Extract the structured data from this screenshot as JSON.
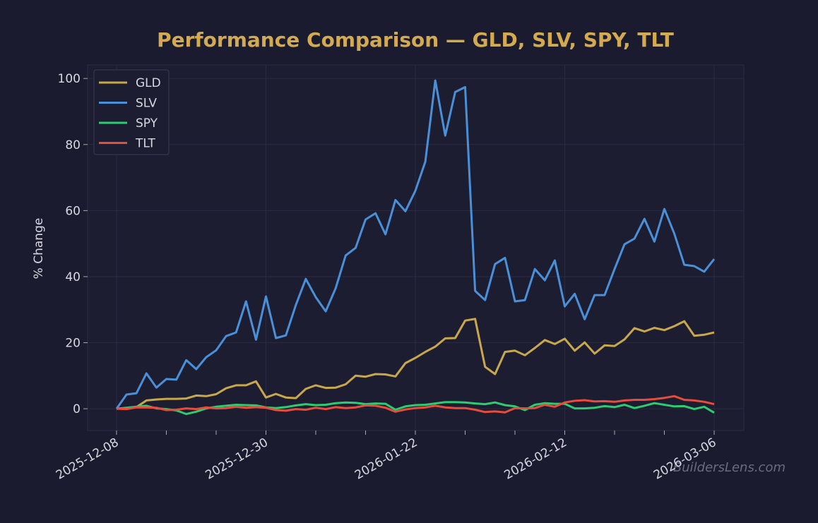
{
  "chart_data": {
    "type": "line",
    "title": "Performance Comparison — GLD, SLV, SPY, TLT",
    "y_label": "% Change",
    "watermark": "BuildersLens.com",
    "categories": [
      "2025-12-08",
      null,
      null,
      null,
      null,
      null,
      null,
      null,
      null,
      null,
      null,
      null,
      null,
      null,
      null,
      "2025-12-30",
      null,
      null,
      null,
      null,
      null,
      null,
      null,
      null,
      null,
      null,
      null,
      null,
      null,
      null,
      "2026-01-22",
      null,
      null,
      null,
      null,
      null,
      null,
      null,
      null,
      null,
      null,
      null,
      null,
      null,
      null,
      "2026-02-12",
      null,
      null,
      null,
      null,
      null,
      null,
      null,
      null,
      null,
      null,
      null,
      null,
      null,
      null,
      "2026-03-06"
    ],
    "ylim": [
      -6.6,
      104.1
    ],
    "yticks": [
      0,
      20,
      40,
      60,
      80,
      100
    ],
    "grid": true,
    "legend": "upper left",
    "series": [
      {
        "name": "GLD",
        "color": "#c9a84c",
        "values": [
          0,
          0.2,
          0.5,
          2.5,
          2.8,
          3.0,
          3.0,
          3.1,
          4.0,
          3.8,
          4.4,
          6.2,
          7.1,
          7.1,
          8.3,
          3.4,
          4.5,
          3.4,
          3.2,
          6.0,
          7.1,
          6.3,
          6.4,
          7.4,
          10.0,
          9.7,
          10.5,
          10.4,
          9.8,
          13.8,
          15.4,
          17.2,
          18.8,
          21.3,
          21.4,
          26.7,
          27.2,
          12.7,
          10.5,
          17.2,
          17.6,
          16.2,
          18.4,
          20.8,
          19.6,
          21.2,
          17.6,
          20.1,
          16.7,
          19.2,
          19.0,
          21.0,
          24.4,
          23.4,
          24.5,
          23.8,
          25.0,
          26.5,
          22.1,
          22.4,
          23.1
        ]
      },
      {
        "name": "SLV",
        "color": "#4a90d9",
        "values": [
          0,
          4.3,
          4.7,
          10.7,
          6.4,
          9.0,
          8.8,
          14.7,
          12.0,
          15.6,
          17.7,
          22.0,
          23.1,
          32.5,
          20.9,
          34.0,
          21.4,
          22.2,
          31.4,
          39.3,
          33.8,
          29.5,
          36.5,
          46.4,
          48.7,
          57.3,
          59.2,
          52.8,
          63.2,
          59.8,
          66.0,
          74.8,
          99.4,
          82.7,
          95.9,
          97.4,
          35.7,
          32.9,
          43.8,
          45.7,
          32.5,
          32.9,
          42.3,
          38.9,
          44.9,
          31.0,
          34.8,
          27.1,
          34.4,
          34.4,
          42.3,
          49.8,
          51.5,
          57.5,
          50.6,
          60.5,
          53.0,
          43.6,
          43.2,
          41.5,
          45.3
        ]
      },
      {
        "name": "SPY",
        "color": "#2ecc71",
        "values": [
          0,
          0.3,
          0.6,
          0.9,
          0.1,
          -0.1,
          -0.5,
          -1.6,
          -0.9,
          0.1,
          0.6,
          0.9,
          1.2,
          1.1,
          1.0,
          0.4,
          0.2,
          0.5,
          1.0,
          1.4,
          1.1,
          1.2,
          1.7,
          1.9,
          1.8,
          1.4,
          1.6,
          1.5,
          -0.3,
          0.7,
          1.1,
          1.2,
          1.6,
          2.0,
          2.0,
          1.9,
          1.6,
          1.4,
          1.9,
          1.1,
          0.7,
          -0.4,
          1.2,
          1.7,
          1.5,
          1.5,
          0.1,
          0.1,
          0.3,
          0.8,
          0.5,
          1.2,
          0.2,
          0.9,
          1.7,
          1.2,
          0.7,
          0.8,
          -0.1,
          0.6,
          -1.2
        ]
      },
      {
        "name": "TLT",
        "color": "#e74c3c",
        "values": [
          0,
          -0.1,
          0.4,
          0.4,
          0.3,
          -0.4,
          -0.3,
          0.1,
          -0.1,
          0.4,
          0.1,
          0.2,
          0.6,
          0.3,
          0.5,
          0.3,
          -0.4,
          -0.6,
          -0.1,
          -0.3,
          0.3,
          -0.1,
          0.5,
          0.2,
          0.4,
          1.0,
          0.9,
          0.3,
          -0.9,
          -0.2,
          0.2,
          0.4,
          0.9,
          0.4,
          0.2,
          0.2,
          -0.3,
          -1.0,
          -0.8,
          -1.1,
          0.2,
          0.1,
          0.2,
          1.2,
          0.6,
          1.9,
          2.4,
          2.6,
          2.2,
          2.3,
          2.1,
          2.5,
          2.7,
          2.7,
          2.9,
          3.3,
          3.8,
          2.7,
          2.5,
          2.1,
          1.4
        ]
      }
    ]
  }
}
